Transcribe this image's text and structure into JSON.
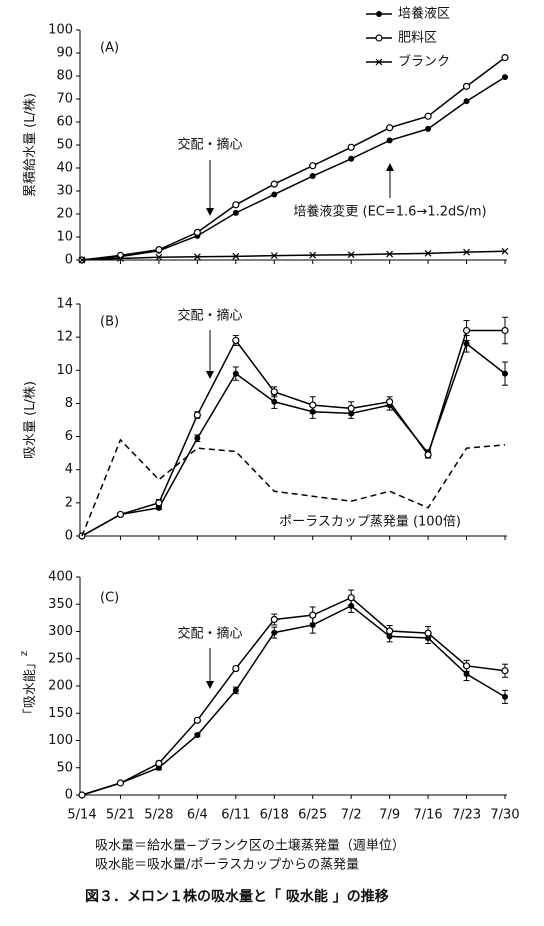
{
  "chart_data": [
    {
      "type": "line",
      "panel_label": "(A)",
      "ylabel": "累積給水量 (L/株)",
      "annotations": [
        "交配・摘心",
        "培養液変更 (EC=1.6→1.2dS/m)"
      ],
      "categories": [
        null,
        null,
        null,
        null,
        null,
        null,
        null,
        null,
        null,
        null,
        null,
        null
      ],
      "ylim": [
        0,
        100
      ],
      "yticks": [
        0,
        10,
        20,
        30,
        40,
        50,
        60,
        70,
        80,
        90,
        100
      ],
      "series": [
        {
          "name": "培養液区",
          "color": "#000000",
          "marker": "filled",
          "values": [
            0,
            1.5,
            4,
            10.5,
            20.5,
            28.5,
            36.5,
            44,
            52,
            57,
            69,
            79.5
          ]
        },
        {
          "name": "肥料区",
          "color": "#000000",
          "marker": "open",
          "values": [
            0,
            2,
            4.5,
            12,
            24,
            33,
            41,
            49,
            57.5,
            62.5,
            75.5,
            88
          ]
        },
        {
          "name": "ブランク",
          "color": "#000000",
          "marker": "x",
          "values": [
            0,
            0.7,
            1.2,
            1.4,
            1.6,
            1.9,
            2.1,
            2.3,
            2.6,
            2.9,
            3.4,
            3.8
          ]
        }
      ]
    },
    {
      "type": "line",
      "panel_label": "(B)",
      "ylabel": "吸水量 (L/株)",
      "annotations": [
        "交配・摘心",
        "ポーラスカップ蒸発量 (100倍)"
      ],
      "categories": [
        null,
        null,
        null,
        null,
        null,
        null,
        null,
        null,
        null,
        null,
        null,
        null
      ],
      "ylim": [
        0,
        14
      ],
      "yticks": [
        0,
        2,
        4,
        6,
        8,
        10,
        12,
        14
      ],
      "series": [
        {
          "color": "#000000",
          "marker": "filled",
          "values": [
            0,
            1.3,
            1.7,
            5.9,
            9.8,
            8.1,
            7.5,
            7.4,
            7.9,
            5.0,
            11.6,
            9.8
          ],
          "errors": [
            0,
            0.1,
            0.1,
            0.2,
            0.4,
            0.4,
            0.4,
            0.3,
            0.3,
            0.2,
            0.5,
            0.7
          ]
        },
        {
          "color": "#000000",
          "marker": "open",
          "values": [
            0,
            1.3,
            2.0,
            7.3,
            11.8,
            8.7,
            7.9,
            7.7,
            8.1,
            4.9,
            12.4,
            12.4
          ],
          "errors": [
            0,
            0.1,
            0.2,
            0.2,
            0.3,
            0.3,
            0.5,
            0.4,
            0.3,
            0.2,
            0.6,
            0.8
          ]
        },
        {
          "color": "#000000",
          "marker": "none",
          "dashed": true,
          "values": [
            0,
            5.8,
            3.4,
            5.3,
            5.1,
            2.7,
            2.4,
            2.1,
            2.7,
            1.7,
            5.3,
            5.5
          ]
        }
      ]
    },
    {
      "type": "line",
      "panel_label": "(C)",
      "ylabel": "「吸水能」",
      "ylabel_sup": "z",
      "annotations": [
        "交配・摘心"
      ],
      "categories": [
        "5/14",
        "5/21",
        "5/28",
        "6/4",
        "6/11",
        "6/18",
        "6/25",
        "7/2",
        "7/9",
        "7/16",
        "7/23",
        "7/30"
      ],
      "ylim": [
        0,
        400
      ],
      "yticks": [
        0,
        50,
        100,
        150,
        200,
        250,
        300,
        350,
        400
      ],
      "series": [
        {
          "color": "#000000",
          "marker": "filled",
          "values": [
            0,
            22,
            50,
            110,
            192,
            298,
            312,
            347,
            291,
            288,
            222,
            180
          ],
          "errors": [
            0,
            2,
            4,
            3,
            6,
            10,
            15,
            12,
            10,
            10,
            12,
            12
          ]
        },
        {
          "color": "#000000",
          "marker": "open",
          "values": [
            0,
            22,
            58,
            137,
            232,
            322,
            330,
            362,
            301,
            297,
            237,
            228
          ],
          "errors": [
            0,
            2,
            4,
            3,
            4,
            10,
            15,
            14,
            10,
            12,
            10,
            12
          ]
        }
      ]
    }
  ],
  "notes": [
    "吸水量＝給水量−ブランク区の土壌蒸発量（週単位）",
    "吸水能＝吸水量/ポーラスカップからの蒸発量"
  ],
  "caption": "図３．メロン１株の吸水量と「 吸水能 」の推移"
}
